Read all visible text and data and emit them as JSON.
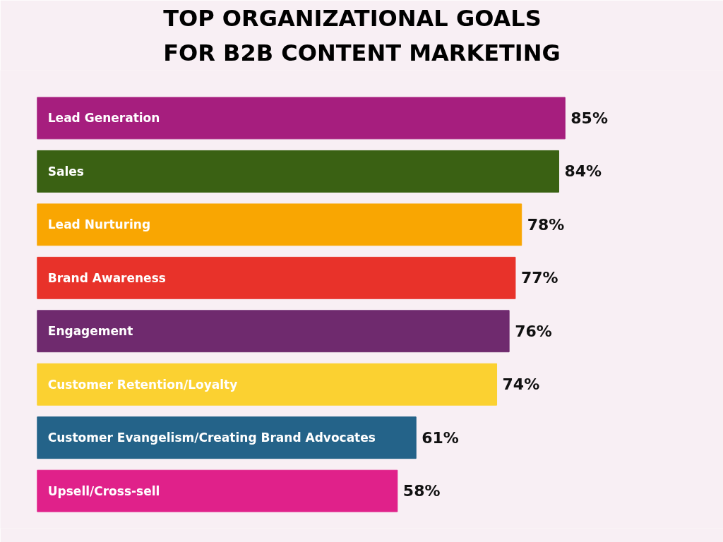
{
  "chart_data": {
    "type": "bar",
    "orientation": "horizontal",
    "title": "TOP ORGANIZATIONAL GOALS FOR B2B CONTENT MARKETING",
    "categories": [
      "Lead Generation",
      "Sales",
      "Lead Nurturing",
      "Brand Awareness",
      "Engagement",
      "Customer Retention/Loyalty",
      "Customer Evangelism/Creating Brand Advocates",
      "Upsell/Cross-sell"
    ],
    "values": [
      85,
      84,
      78,
      77,
      76,
      74,
      61,
      58
    ],
    "value_labels": [
      "85%",
      "84%",
      "78%",
      "77%",
      "76%",
      "74%",
      "61%",
      "58%"
    ],
    "colors": [
      "#a61e7e",
      "#3a6113",
      "#f9a602",
      "#e8322a",
      "#6f2a6e",
      "#fbd131",
      "#246389",
      "#e0218a"
    ]
  }
}
